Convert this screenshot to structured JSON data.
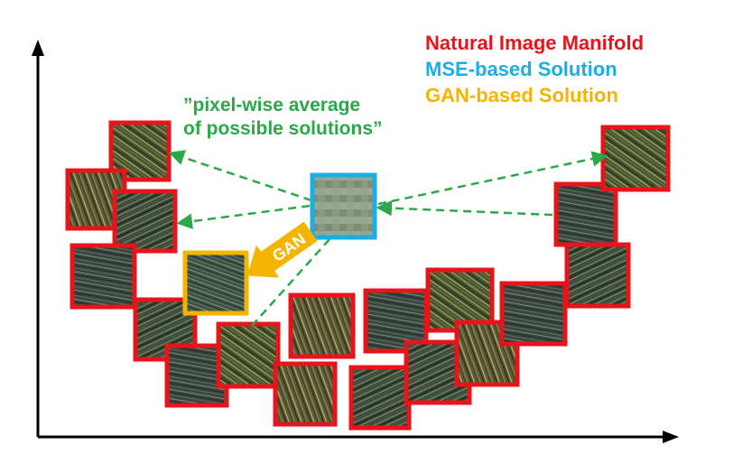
{
  "legend": {
    "natural": "Natural Image Manifold",
    "mse": "MSE-based Solution",
    "gan": "GAN-based Solution"
  },
  "annotation": {
    "line1": "”pixel-wise average",
    "line2": "of possible solutions”"
  },
  "gan_arrow_label": "GAN",
  "colors": {
    "natural": "#e8141b",
    "mse": "#19aee6",
    "gan": "#f4b400",
    "annotation": "#2aa84a",
    "axis": "#000000"
  }
}
